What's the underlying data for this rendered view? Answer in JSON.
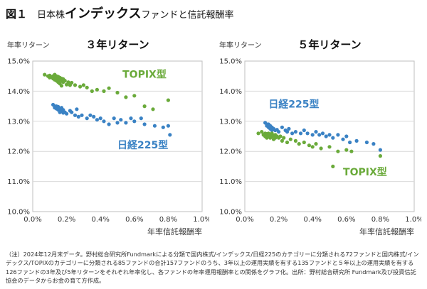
{
  "figure": {
    "label": "図１",
    "title_pre": "日本株",
    "title_emph": "インデックス",
    "title_post": "ファンドと信託報酬率"
  },
  "note": "（注）2024年12月末データ。野村総合研究所Fundmarkによる分類で国内株式/インデックス/日経225のカテゴリーに分類される72ファンドと国内株式/インデックス/TOPIXのカテゴリーに分類される85ファンドの合計157ファンドのうち、3年以上の運用実績を有する135ファンドと５年以上の運用実績を有する126ファンドの3年及び5年リターンをそれぞれ年率化し、各ファンドの年率運用報酬率との関係をグラフ化。出所：野村総合研究所 Fundmark及び投資信託協会のデータからお金の育て方作成。",
  "colors": {
    "topix": "#6aaa3a",
    "nikkei": "#3a82c4",
    "grid": "#d9d9d9",
    "axis": "#bfbfbf"
  },
  "chart_data": [
    {
      "type": "scatter",
      "title": "３年リターン",
      "ylabel": "年率リターン",
      "xlabel": "年率信託報酬率",
      "xlim": [
        0.0,
        1.0
      ],
      "ylim": [
        10.0,
        15.0
      ],
      "xticks": [
        "0.0%",
        "0.2%",
        "0.4%",
        "0.6%",
        "0.8%",
        "1.0%"
      ],
      "yticks": [
        "10.0%",
        "11.0%",
        "12.0%",
        "13.0%",
        "14.0%",
        "15.0%"
      ],
      "grid": true,
      "series": [
        {
          "name": "TOPIX型",
          "color": "#6aaa3a",
          "label_pos": [
            0.53,
            14.45
          ],
          "points": [
            [
              0.07,
              14.55
            ],
            [
              0.09,
              14.5
            ],
            [
              0.1,
              14.52
            ],
            [
              0.1,
              14.45
            ],
            [
              0.11,
              14.47
            ],
            [
              0.12,
              14.5
            ],
            [
              0.12,
              14.42
            ],
            [
              0.13,
              14.55
            ],
            [
              0.13,
              14.45
            ],
            [
              0.13,
              14.38
            ],
            [
              0.14,
              14.5
            ],
            [
              0.14,
              14.42
            ],
            [
              0.14,
              14.35
            ],
            [
              0.15,
              14.48
            ],
            [
              0.15,
              14.4
            ],
            [
              0.15,
              14.3
            ],
            [
              0.16,
              14.45
            ],
            [
              0.16,
              14.38
            ],
            [
              0.16,
              14.25
            ],
            [
              0.17,
              14.42
            ],
            [
              0.17,
              14.35
            ],
            [
              0.17,
              14.18
            ],
            [
              0.18,
              14.4
            ],
            [
              0.18,
              14.3
            ],
            [
              0.19,
              14.35
            ],
            [
              0.2,
              14.22
            ],
            [
              0.21,
              14.3
            ],
            [
              0.22,
              14.2
            ],
            [
              0.23,
              14.28
            ],
            [
              0.25,
              14.2
            ],
            [
              0.28,
              14.15
            ],
            [
              0.3,
              14.2
            ],
            [
              0.32,
              14.12
            ],
            [
              0.35,
              14.0
            ],
            [
              0.38,
              14.05
            ],
            [
              0.42,
              14.0
            ],
            [
              0.45,
              14.1
            ],
            [
              0.5,
              13.95
            ],
            [
              0.55,
              13.8
            ],
            [
              0.6,
              13.85
            ],
            [
              0.66,
              13.5
            ],
            [
              0.71,
              13.4
            ],
            [
              0.8,
              13.7
            ]
          ]
        },
        {
          "name": "日経225型",
          "color": "#3a82c4",
          "label_pos": [
            0.5,
            12.1
          ],
          "points": [
            [
              0.12,
              13.55
            ],
            [
              0.13,
              13.5
            ],
            [
              0.13,
              13.45
            ],
            [
              0.14,
              13.5
            ],
            [
              0.14,
              13.42
            ],
            [
              0.15,
              13.48
            ],
            [
              0.15,
              13.38
            ],
            [
              0.16,
              13.4
            ],
            [
              0.16,
              13.3
            ],
            [
              0.17,
              13.45
            ],
            [
              0.17,
              13.35
            ],
            [
              0.18,
              13.38
            ],
            [
              0.18,
              13.28
            ],
            [
              0.19,
              13.3
            ],
            [
              0.2,
              13.25
            ],
            [
              0.22,
              13.35
            ],
            [
              0.23,
              13.3
            ],
            [
              0.25,
              13.2
            ],
            [
              0.26,
              13.4
            ],
            [
              0.27,
              13.15
            ],
            [
              0.29,
              13.2
            ],
            [
              0.32,
              13.1
            ],
            [
              0.34,
              13.2
            ],
            [
              0.36,
              13.15
            ],
            [
              0.38,
              13.05
            ],
            [
              0.4,
              13.1
            ],
            [
              0.42,
              13.0
            ],
            [
              0.45,
              12.9
            ],
            [
              0.48,
              13.1
            ],
            [
              0.5,
              12.95
            ],
            [
              0.52,
              13.05
            ],
            [
              0.55,
              12.95
            ],
            [
              0.58,
              13.1
            ],
            [
              0.6,
              13.0
            ],
            [
              0.64,
              13.1
            ],
            [
              0.66,
              12.9
            ],
            [
              0.72,
              12.85
            ],
            [
              0.77,
              12.8
            ],
            [
              0.8,
              12.85
            ],
            [
              0.81,
              12.55
            ]
          ]
        }
      ]
    },
    {
      "type": "scatter",
      "title": "５年リターン",
      "ylabel": "年率リターン",
      "xlabel": "年率信託報酬率",
      "xlim": [
        0.0,
        1.0
      ],
      "ylim": [
        10.0,
        15.0
      ],
      "xticks": [
        "0.0%",
        "0.2%",
        "0.4%",
        "0.6%",
        "0.8%",
        "1.0%"
      ],
      "yticks": [
        "10.0%",
        "11.0%",
        "12.0%",
        "13.0%",
        "14.0%",
        "15.0%"
      ],
      "grid": true,
      "series": [
        {
          "name": "日経225型",
          "color": "#3a82c4",
          "label_pos": [
            0.14,
            13.45
          ],
          "points": [
            [
              0.12,
              12.95
            ],
            [
              0.13,
              12.9
            ],
            [
              0.13,
              12.85
            ],
            [
              0.14,
              12.9
            ],
            [
              0.14,
              12.8
            ],
            [
              0.15,
              12.85
            ],
            [
              0.15,
              12.75
            ],
            [
              0.16,
              12.8
            ],
            [
              0.16,
              12.7
            ],
            [
              0.17,
              12.75
            ],
            [
              0.18,
              12.7
            ],
            [
              0.19,
              12.72
            ],
            [
              0.2,
              12.65
            ],
            [
              0.22,
              12.8
            ],
            [
              0.24,
              12.7
            ],
            [
              0.25,
              12.65
            ],
            [
              0.26,
              12.75
            ],
            [
              0.28,
              12.6
            ],
            [
              0.3,
              12.65
            ],
            [
              0.33,
              12.6
            ],
            [
              0.35,
              12.7
            ],
            [
              0.37,
              12.6
            ],
            [
              0.4,
              12.55
            ],
            [
              0.42,
              12.65
            ],
            [
              0.44,
              12.55
            ],
            [
              0.46,
              12.6
            ],
            [
              0.48,
              12.5
            ],
            [
              0.5,
              12.55
            ],
            [
              0.52,
              12.45
            ],
            [
              0.55,
              12.55
            ],
            [
              0.58,
              12.4
            ],
            [
              0.6,
              12.5
            ],
            [
              0.62,
              12.3
            ],
            [
              0.66,
              12.35
            ],
            [
              0.72,
              12.3
            ],
            [
              0.76,
              12.25
            ],
            [
              0.8,
              12.05
            ]
          ]
        },
        {
          "name": "TOPIX型",
          "color": "#6aaa3a",
          "label_pos": [
            0.58,
            11.2
          ],
          "points": [
            [
              0.08,
              12.6
            ],
            [
              0.1,
              12.65
            ],
            [
              0.11,
              12.55
            ],
            [
              0.12,
              12.6
            ],
            [
              0.12,
              12.5
            ],
            [
              0.13,
              12.58
            ],
            [
              0.13,
              12.45
            ],
            [
              0.14,
              12.6
            ],
            [
              0.14,
              12.5
            ],
            [
              0.15,
              12.55
            ],
            [
              0.15,
              12.45
            ],
            [
              0.16,
              12.6
            ],
            [
              0.16,
              12.5
            ],
            [
              0.17,
              12.52
            ],
            [
              0.17,
              12.4
            ],
            [
              0.18,
              12.55
            ],
            [
              0.18,
              12.45
            ],
            [
              0.19,
              12.5
            ],
            [
              0.2,
              12.45
            ],
            [
              0.21,
              12.5
            ],
            [
              0.22,
              12.35
            ],
            [
              0.23,
              12.45
            ],
            [
              0.25,
              12.3
            ],
            [
              0.27,
              12.4
            ],
            [
              0.3,
              12.35
            ],
            [
              0.32,
              12.25
            ],
            [
              0.35,
              12.3
            ],
            [
              0.38,
              12.2
            ],
            [
              0.4,
              12.15
            ],
            [
              0.42,
              12.25
            ],
            [
              0.45,
              12.1
            ],
            [
              0.5,
              12.15
            ],
            [
              0.52,
              11.5
            ],
            [
              0.55,
              12.0
            ],
            [
              0.6,
              12.05
            ],
            [
              0.63,
              12.0
            ],
            [
              0.8,
              11.85
            ]
          ]
        }
      ]
    }
  ]
}
